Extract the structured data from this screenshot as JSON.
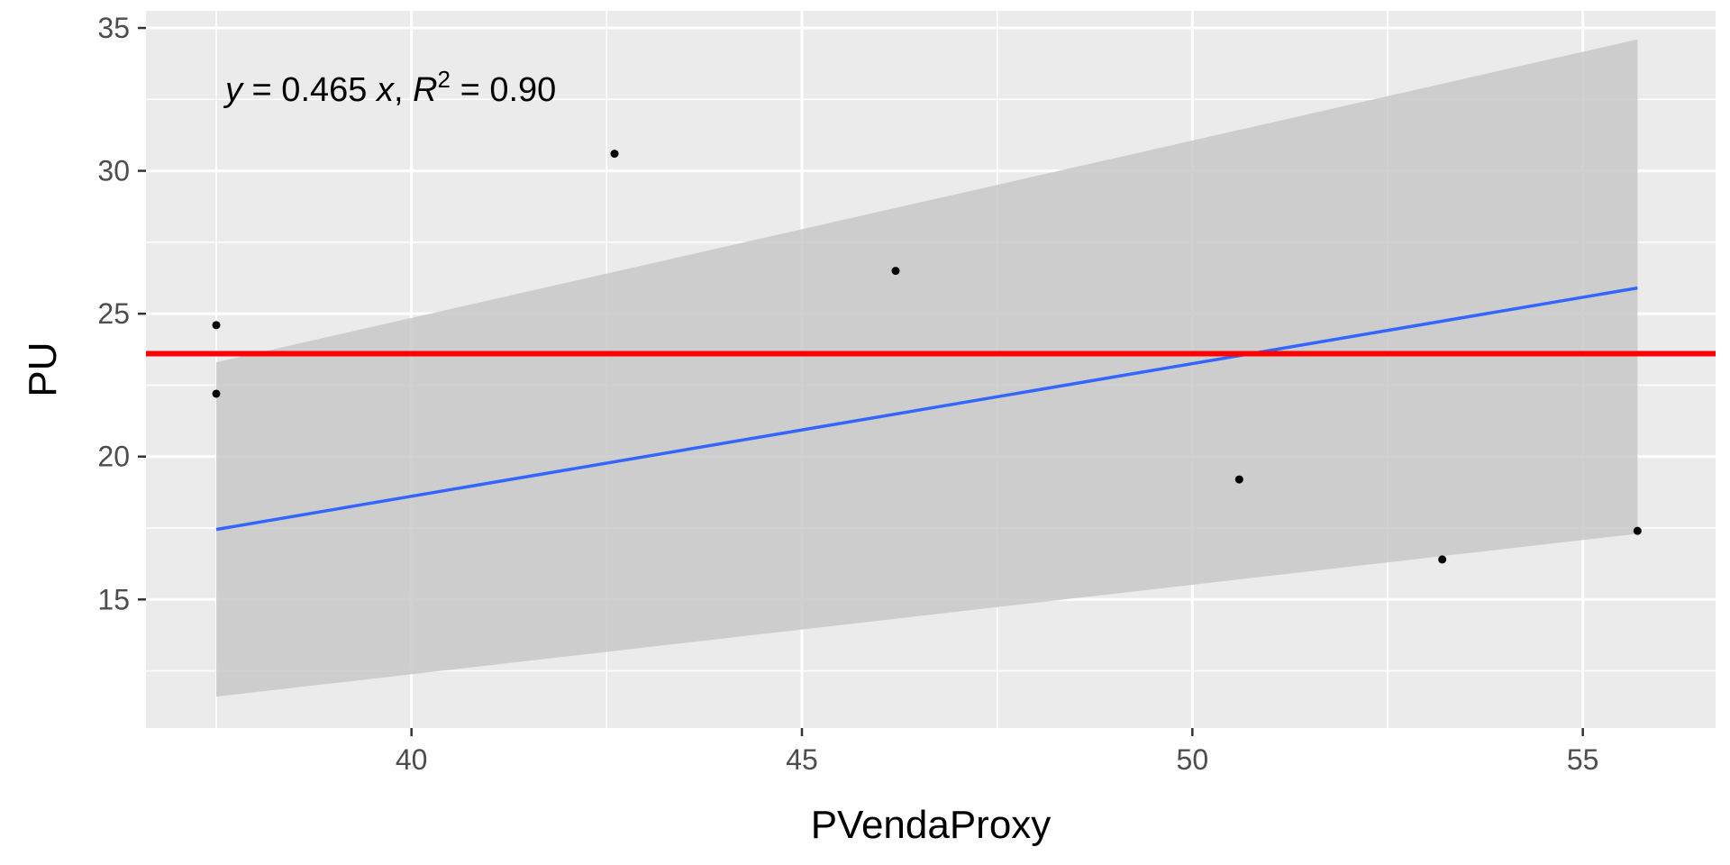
{
  "chart_data": {
    "type": "scatter",
    "xlabel": "PVendaProxy",
    "ylabel": "PU",
    "xlim": [
      36.6,
      56.7
    ],
    "ylim": [
      10.5,
      35.6
    ],
    "x_ticks": [
      40,
      45,
      50,
      55
    ],
    "y_ticks": [
      15,
      20,
      25,
      30,
      35
    ],
    "x_tick_labels": [
      "40",
      "45",
      "50",
      "55"
    ],
    "y_tick_labels": [
      "15",
      "20",
      "25",
      "30",
      "35"
    ],
    "grid": true,
    "points": [
      {
        "x": 37.5,
        "y": 24.6
      },
      {
        "x": 37.5,
        "y": 22.2
      },
      {
        "x": 42.6,
        "y": 30.6
      },
      {
        "x": 46.2,
        "y": 26.5
      },
      {
        "x": 50.6,
        "y": 19.2
      },
      {
        "x": 53.2,
        "y": 16.4
      },
      {
        "x": 55.7,
        "y": 17.4
      }
    ],
    "fit_line": {
      "x": [
        37.5,
        55.7
      ],
      "y": [
        17.45,
        25.9
      ]
    },
    "confidence_band": {
      "x": [
        37.5,
        55.7
      ],
      "upper": [
        23.3,
        34.6
      ],
      "lower": [
        11.6,
        17.3
      ]
    },
    "reference_line": {
      "y": 23.6
    },
    "annotation": {
      "y_var": "y",
      "eq_text": " = 0.465 ",
      "x_var": "x",
      "sep": ", ",
      "r_var": "R",
      "r_exp": "2",
      "r_val": " = 0.90"
    },
    "colors": {
      "panel": "#ebebeb",
      "grid": "#ffffff",
      "points": "#000000",
      "fit": "#3366ff",
      "band": "#c8c8c8",
      "reference": "#ff0000"
    }
  }
}
